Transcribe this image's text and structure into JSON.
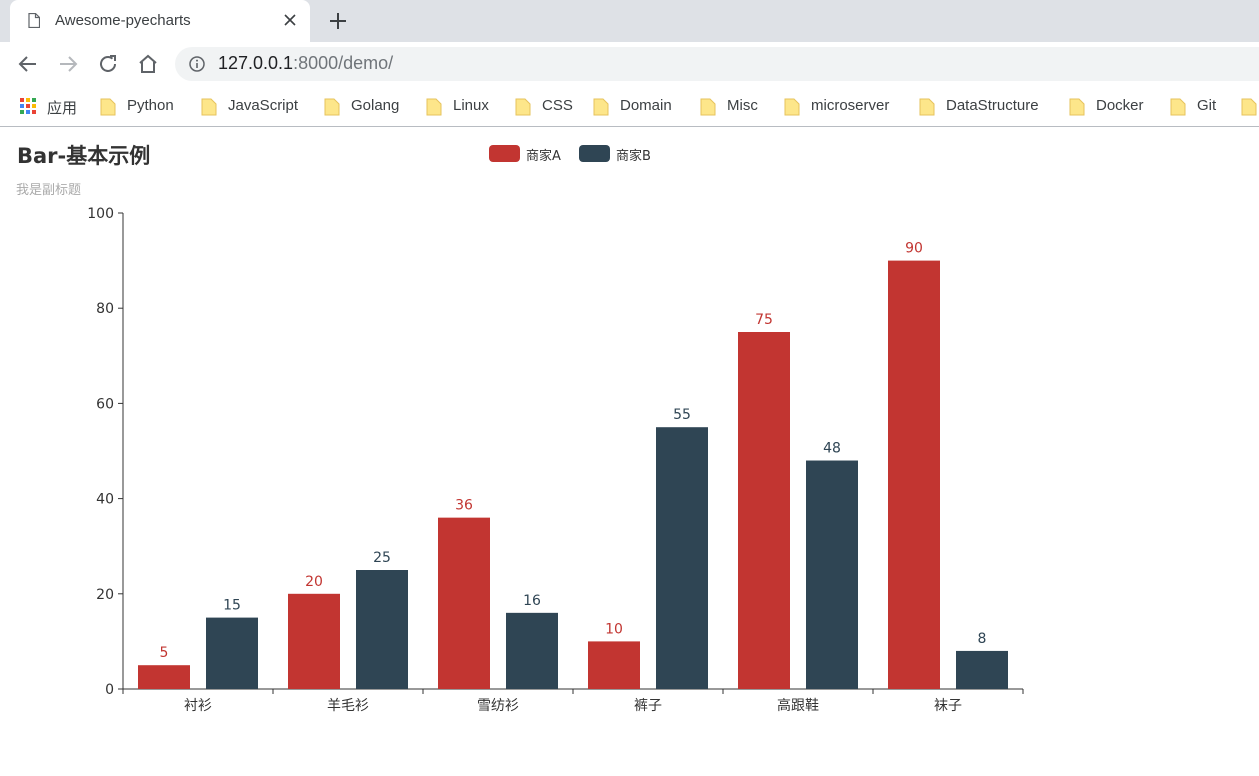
{
  "browser": {
    "tab": {
      "title": "Awesome-pyecharts",
      "icon": "document-icon"
    },
    "address": {
      "host": "127.0.0.1",
      "rest": ":8000/demo/"
    },
    "bookmarks": [
      {
        "label": "应用",
        "icon": "apps-grid-icon"
      },
      {
        "label": "Python",
        "icon": "folder-icon"
      },
      {
        "label": "JavaScript",
        "icon": "folder-icon"
      },
      {
        "label": "Golang",
        "icon": "folder-icon"
      },
      {
        "label": "Linux",
        "icon": "folder-icon"
      },
      {
        "label": "CSS",
        "icon": "folder-icon"
      },
      {
        "label": "Domain",
        "icon": "folder-icon"
      },
      {
        "label": "Misc",
        "icon": "folder-icon"
      },
      {
        "label": "microserver",
        "icon": "folder-icon"
      },
      {
        "label": "DataStructure",
        "icon": "folder-icon"
      },
      {
        "label": "Docker",
        "icon": "folder-icon"
      },
      {
        "label": "Git",
        "icon": "folder-icon"
      }
    ]
  },
  "chart_data": {
    "type": "bar",
    "title": "Bar-基本示例",
    "subtitle": "我是副标题",
    "categories": [
      "衬衫",
      "羊毛衫",
      "雪纺衫",
      "裤子",
      "高跟鞋",
      "袜子"
    ],
    "series": [
      {
        "name": "商家A",
        "color": "#c23531",
        "values": [
          5,
          20,
          36,
          10,
          75,
          90
        ]
      },
      {
        "name": "商家B",
        "color": "#2f4554",
        "values": [
          15,
          25,
          16,
          55,
          48,
          8
        ]
      }
    ],
    "ylim": [
      0,
      100
    ],
    "yticks": [
      0,
      20,
      40,
      60,
      80,
      100
    ],
    "xlabel": "",
    "ylabel": "",
    "grid": false,
    "legend_position": "top-center",
    "data_labels": "top"
  }
}
